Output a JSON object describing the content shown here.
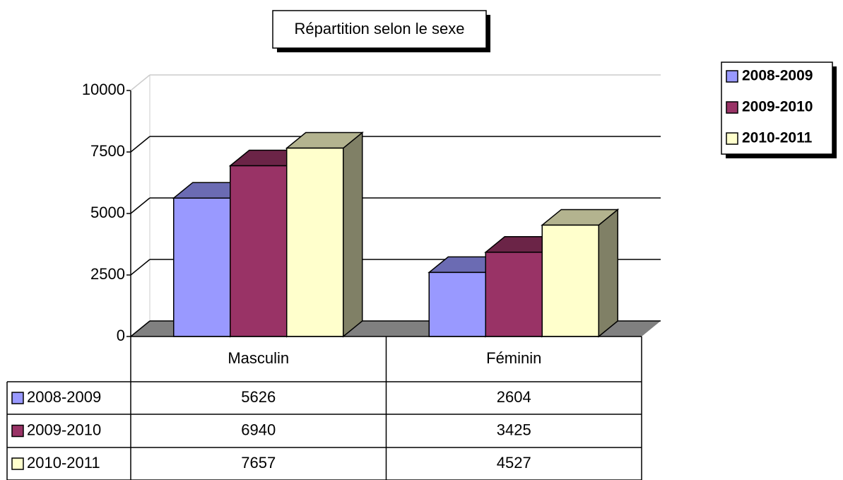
{
  "chart_data": {
    "type": "bar",
    "title": "Répartition selon le sexe",
    "categories": [
      "Masculin",
      "Féminin"
    ],
    "series": [
      {
        "name": "2008-2009",
        "color": "#9999ff",
        "values": [
          5626,
          2604
        ]
      },
      {
        "name": "2009-2010",
        "color": "#993366",
        "values": [
          6940,
          3425
        ]
      },
      {
        "name": "2010-2011",
        "color": "#ffffcc",
        "values": [
          7657,
          4527
        ]
      }
    ],
    "ylim": [
      0,
      10000
    ],
    "yticks": [
      0,
      2500,
      5000,
      7500,
      10000
    ],
    "grid": true,
    "legend": "right"
  }
}
